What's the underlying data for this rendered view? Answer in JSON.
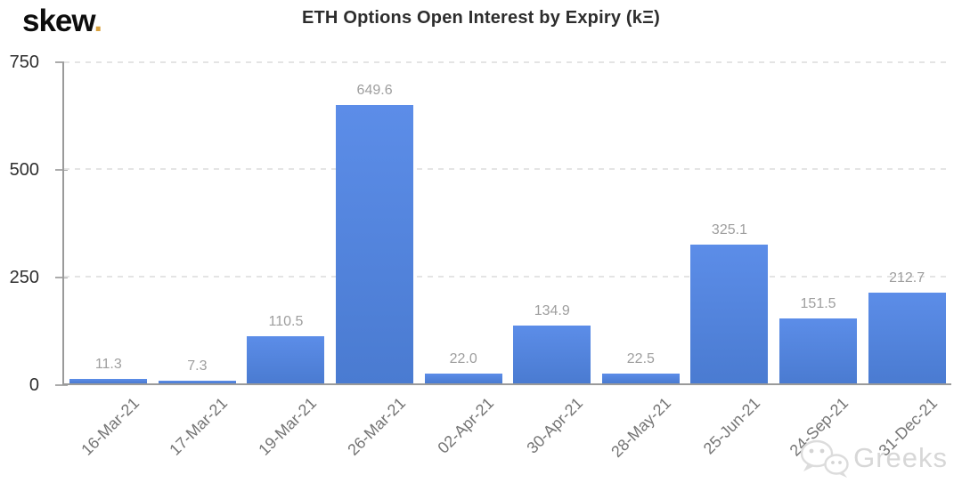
{
  "brand": {
    "name": "skew",
    "dot": ".",
    "dot_color": "#d9a23f"
  },
  "header": {
    "title": "ETH Options Open Interest by Expiry (kΞ)"
  },
  "chart_data": {
    "type": "bar",
    "title": "ETH Options Open Interest by Expiry (kΞ)",
    "categories": [
      "16-Mar-21",
      "17-Mar-21",
      "19-Mar-21",
      "26-Mar-21",
      "02-Apr-21",
      "30-Apr-21",
      "28-May-21",
      "25-Jun-21",
      "24-Sep-21",
      "31-Dec-21"
    ],
    "values": [
      11.3,
      7.3,
      110.5,
      649.6,
      22.0,
      134.9,
      22.5,
      325.1,
      151.5,
      212.7
    ],
    "value_labels": [
      "11.3",
      "7.3",
      "110.5",
      "649.6",
      "22.0",
      "134.9",
      "22.5",
      "325.1",
      "151.5",
      "212.7"
    ],
    "xlabel": "",
    "ylabel": "",
    "ylim": [
      0,
      750
    ],
    "yticks": [
      0,
      250,
      500,
      750
    ],
    "grid": "horizontal-dashed",
    "legend": "none",
    "bar_gradient": [
      "#5c8de8",
      "#4a7bd1"
    ],
    "axis_color": "#9a9a9a",
    "gridline_color": "#e4e4e4",
    "value_label_color": "#9e9e9e",
    "x_tick_label_color": "#757575",
    "y_tick_label_color": "#2f2f2f"
  },
  "watermark": {
    "text": "Greeks",
    "icon": "wechat-icon"
  }
}
